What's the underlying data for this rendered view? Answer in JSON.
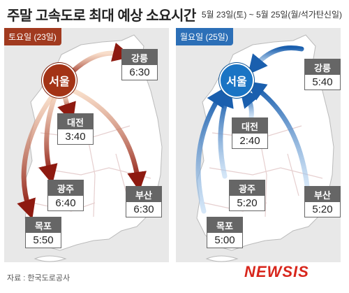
{
  "title": "주말 고속도로 최대 예상 소요시간",
  "date_range": "5월 23일(토) ~ 5월 25일(월/석가탄신일)",
  "source": "자료 : 한국도로공사",
  "logo": "NEWSIS",
  "colors": {
    "saturday": "#a33316",
    "monday": "#1a74c4"
  },
  "saturday": {
    "label": "토요일 (23일)",
    "hub": "서울",
    "routes": [
      {
        "city": "강릉",
        "time": "6:30"
      },
      {
        "city": "대전",
        "time": "3:40"
      },
      {
        "city": "광주",
        "time": "6:40"
      },
      {
        "city": "부산",
        "time": "6:30"
      },
      {
        "city": "목포",
        "time": "5:50"
      }
    ]
  },
  "monday": {
    "label": "월요일 (25일)",
    "hub": "서울",
    "routes": [
      {
        "city": "강릉",
        "time": "5:40"
      },
      {
        "city": "대전",
        "time": "2:40"
      },
      {
        "city": "광주",
        "time": "5:20"
      },
      {
        "city": "부산",
        "time": "5:20"
      },
      {
        "city": "목포",
        "time": "5:00"
      }
    ]
  }
}
